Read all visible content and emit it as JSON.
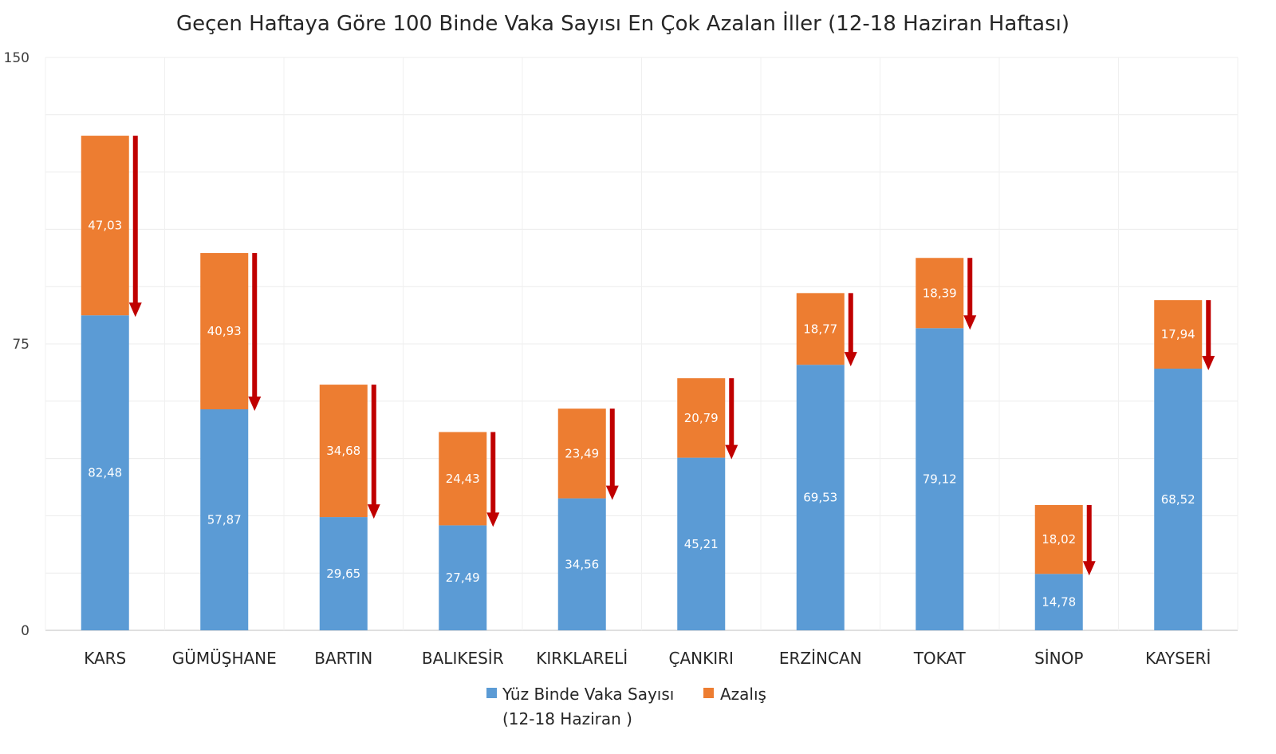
{
  "chart_data": {
    "type": "bar",
    "stacked": true,
    "title": "Geçen Haftaya Göre 100 Binde Vaka Sayısı En Çok Azalan İller (12-18 Haziran Haftası)",
    "xlabel": "",
    "ylabel": "",
    "ylim": [
      0,
      150
    ],
    "yticks": [
      "0",
      "75",
      "150"
    ],
    "grid": true,
    "legend_position": "bottom",
    "categories": [
      "KARS",
      "GÜMÜŞHANE",
      "BARTIN",
      "BALIKESİR",
      "KIRKLARELİ",
      "ÇANKIRI",
      "ERZİNCAN",
      "TOKAT",
      "SİNOP",
      "KAYSERİ"
    ],
    "series": [
      {
        "name": "Yüz Binde Vaka Sayısı",
        "name_line2": "(12-18 Haziran )",
        "color": "#5B9BD5",
        "values": [
          82.48,
          57.87,
          29.65,
          27.49,
          34.56,
          45.21,
          69.53,
          79.12,
          14.78,
          68.52
        ],
        "labels": [
          "82,48",
          "57,87",
          "29,65",
          "27,49",
          "34,56",
          "45,21",
          "69,53",
          "79,12",
          "14,78",
          "68,52"
        ]
      },
      {
        "name": "Azalış",
        "color": "#ED7D31",
        "values": [
          47.03,
          40.93,
          34.68,
          24.43,
          23.49,
          20.79,
          18.77,
          18.39,
          18.02,
          17.94
        ],
        "labels": [
          "47,03",
          "40,93",
          "34,68",
          "24,43",
          "23,49",
          "20,79",
          "18,77",
          "18,39",
          "18,02",
          "17,94"
        ]
      }
    ],
    "annotations": {
      "decrease_arrow_color": "#C00000",
      "decrease_arrow_icon": "down-arrow-icon"
    }
  }
}
